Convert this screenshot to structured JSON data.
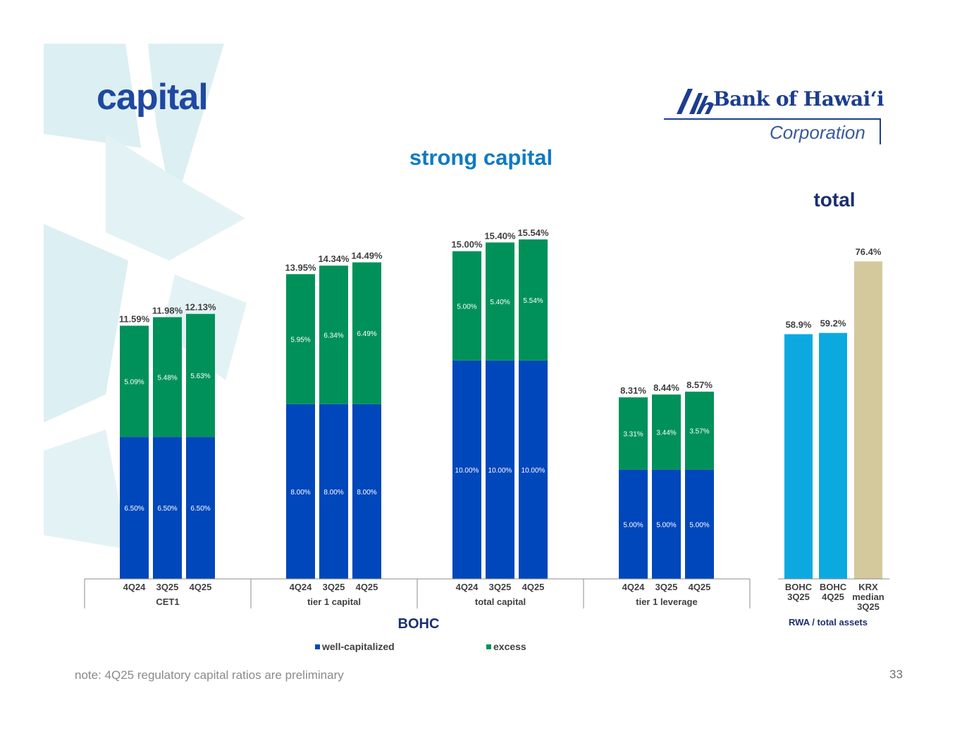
{
  "slide": {
    "title": "capital",
    "subtitle": "strong capital",
    "side_title": "total",
    "footnote": "note: 4Q25 regulatory capital ratios are preliminary",
    "page_number": "33"
  },
  "logo": {
    "name": "Bank of Hawaiʻi",
    "sub": "Corporation",
    "icon": "bank-of-hawaii-logo-mark"
  },
  "colors": {
    "well_capitalized": "#0047bb",
    "excess": "#00915a",
    "bohc_rwa": "#0ca9e1",
    "krx_rwa": "#d4c89d",
    "title": "#1f48a1",
    "subtitle": "#0f7ac4",
    "axis_label": "#1b2f70",
    "text": "#404040",
    "decor": "#dceff2"
  },
  "legend": {
    "well_capitalized": "well-capitalized",
    "excess": "excess"
  },
  "chart_data": [
    {
      "type": "bar",
      "stacked": true,
      "title": "strong capital",
      "xlabel": "BOHC",
      "ylim": [
        0,
        16.5
      ],
      "groups": [
        {
          "name": "CET1",
          "categories": [
            "4Q24",
            "3Q25",
            "4Q25"
          ],
          "well_capitalized": [
            6.5,
            6.5,
            6.5
          ],
          "excess": [
            5.09,
            5.48,
            5.63
          ],
          "well_labels": [
            "6.50%",
            "6.50%",
            "6.50%"
          ],
          "excess_labels": [
            "5.09%",
            "5.48%",
            "5.63%"
          ],
          "totals": [
            11.59,
            11.98,
            12.13
          ],
          "total_labels": [
            "11.59%",
            "11.98%",
            "12.13%"
          ]
        },
        {
          "name": "tier 1 capital",
          "categories": [
            "4Q24",
            "3Q25",
            "4Q25"
          ],
          "well_capitalized": [
            8.0,
            8.0,
            8.0
          ],
          "excess": [
            5.95,
            6.34,
            6.49
          ],
          "well_labels": [
            "8.00%",
            "8.00%",
            "8.00%"
          ],
          "excess_labels": [
            "5.95%",
            "6.34%",
            "6.49%"
          ],
          "totals": [
            13.95,
            14.34,
            14.49
          ],
          "total_labels": [
            "13.95%",
            "14.34%",
            "14.49%"
          ]
        },
        {
          "name": "total capital",
          "categories": [
            "4Q24",
            "3Q25",
            "4Q25"
          ],
          "well_capitalized": [
            10.0,
            10.0,
            10.0
          ],
          "excess": [
            5.0,
            5.4,
            5.54
          ],
          "well_labels": [
            "10.00%",
            "10.00%",
            "10.00%"
          ],
          "excess_labels": [
            "5.00%",
            "5.40%",
            "5.54%"
          ],
          "totals": [
            15.0,
            15.4,
            15.54
          ],
          "total_labels": [
            "15.00%",
            "15.40%",
            "15.54%"
          ]
        },
        {
          "name": "tier 1 leverage",
          "categories": [
            "4Q24",
            "3Q25",
            "4Q25"
          ],
          "well_capitalized": [
            5.0,
            5.0,
            5.0
          ],
          "excess": [
            3.31,
            3.44,
            3.57
          ],
          "well_labels": [
            "5.00%",
            "5.00%",
            "5.00%"
          ],
          "excess_labels": [
            "3.31%",
            "3.44%",
            "3.57%"
          ],
          "totals": [
            8.31,
            8.44,
            8.57
          ],
          "total_labels": [
            "8.31%",
            "8.44%",
            "8.57%"
          ]
        }
      ],
      "series": [
        {
          "name": "well-capitalized",
          "color": "#0047bb"
        },
        {
          "name": "excess",
          "color": "#00915a"
        }
      ],
      "legend": "bottom"
    },
    {
      "type": "bar",
      "title": "total",
      "xlabel": "RWA / total assets",
      "ylim": [
        0,
        81
      ],
      "categories": [
        [
          "BOHC",
          "3Q25"
        ],
        [
          "BOHC",
          "4Q25"
        ],
        [
          "KRX",
          "median",
          "3Q25"
        ]
      ],
      "values": [
        58.9,
        59.2,
        76.4
      ],
      "labels": [
        "58.9%",
        "59.2%",
        "76.4%"
      ],
      "colors": [
        "#0ca9e1",
        "#0ca9e1",
        "#d4c89d"
      ]
    }
  ]
}
